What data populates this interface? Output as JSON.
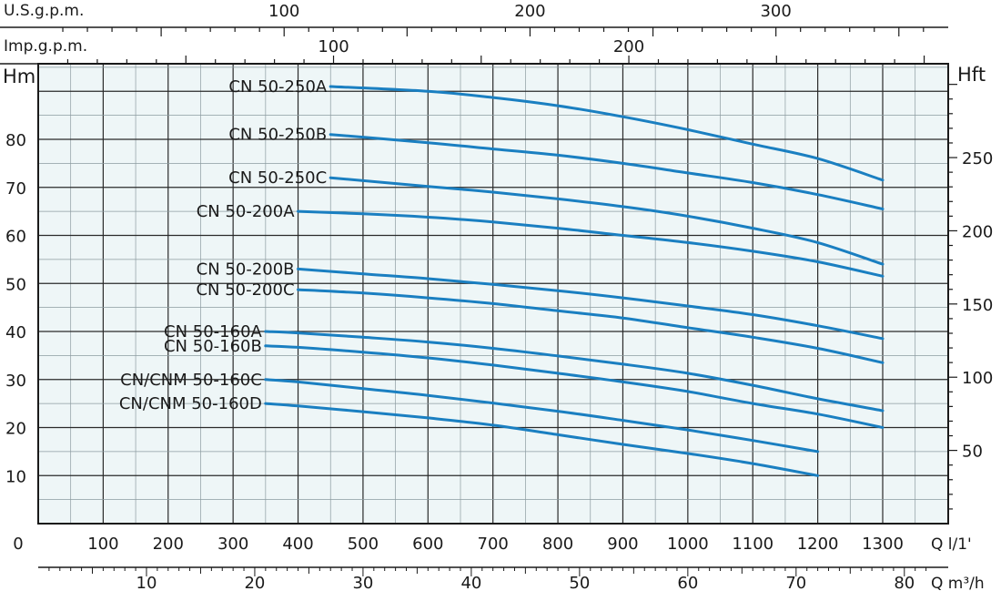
{
  "chart_data": {
    "type": "line",
    "left_axis_title": "Hm",
    "right_axis_title": "Hft",
    "top_axis_1_label": "U.S.g.p.m.",
    "top_axis_2_label": "Imp.g.p.m.",
    "bottom_axis_1_label": "Q  l/1'",
    "bottom_axis_2_label": "Q  m³/h",
    "bottom_origin_label": "0",
    "x_unit": "l/min",
    "xlim": [
      0,
      1370
    ],
    "ylim": [
      0,
      95
    ],
    "grid": true,
    "y_ticks": [
      "10",
      "20",
      "30",
      "40",
      "50",
      "60",
      "70",
      "80"
    ],
    "y_tick_values": [
      10,
      20,
      30,
      40,
      50,
      60,
      70,
      80
    ],
    "x_ticks_lmin": [
      "100",
      "200",
      "300",
      "400",
      "500",
      "600",
      "700",
      "800",
      "900",
      "1000",
      "1100",
      "1200",
      "1300"
    ],
    "x_ticks_lmin_values": [
      100,
      200,
      300,
      400,
      500,
      600,
      700,
      800,
      900,
      1000,
      1100,
      1200,
      1300
    ],
    "x_ticks_m3h": [
      "10",
      "20",
      "30",
      "40",
      "50",
      "60",
      "70",
      "80"
    ],
    "x_ticks_m3h_values": [
      10,
      20,
      30,
      40,
      50,
      60,
      70,
      80
    ],
    "x_ticks_usgpm": [
      "100",
      "200",
      "300"
    ],
    "x_ticks_usgpm_values": [
      100,
      200,
      300
    ],
    "x_ticks_impgpm": [
      "100",
      "200"
    ],
    "x_ticks_impgpm_values": [
      100,
      200
    ],
    "y_ticks_ft": [
      "50",
      "100",
      "150",
      "200",
      "250"
    ],
    "y_ticks_ft_values": [
      50,
      100,
      150,
      200,
      250
    ],
    "series_color": "#1a7fc1",
    "series": [
      {
        "name": "CN 50-250A",
        "x": [
          450,
          600,
          700,
          800,
          900,
          1000,
          1100,
          1200,
          1300
        ],
        "y": [
          91,
          90,
          88.7,
          87,
          84.7,
          82,
          79,
          76,
          71.5
        ]
      },
      {
        "name": "CN 50-250B",
        "x": [
          450,
          600,
          700,
          800,
          900,
          1000,
          1100,
          1200,
          1300
        ],
        "y": [
          81,
          79.3,
          78,
          76.7,
          75,
          73,
          71,
          68.5,
          65.5
        ]
      },
      {
        "name": "CN 50-250C",
        "x": [
          450,
          600,
          700,
          800,
          900,
          1000,
          1100,
          1200,
          1300
        ],
        "y": [
          72,
          70.2,
          69,
          67.6,
          66,
          64,
          61.5,
          58.5,
          54
        ]
      },
      {
        "name": "CN 50-200A",
        "x": [
          400,
          500,
          600,
          700,
          800,
          900,
          1000,
          1100,
          1200,
          1300
        ],
        "y": [
          65,
          64.5,
          63.8,
          62.8,
          61.5,
          60,
          58.5,
          56.7,
          54.5,
          51.5
        ]
      },
      {
        "name": "CN 50-200B",
        "x": [
          400,
          500,
          600,
          700,
          800,
          900,
          1000,
          1100,
          1200,
          1300
        ],
        "y": [
          53,
          52,
          51,
          49.8,
          48.5,
          47,
          45.3,
          43.5,
          41.2,
          38.5
        ]
      },
      {
        "name": "CN 50-200C",
        "x": [
          400,
          500,
          600,
          700,
          800,
          900,
          1000,
          1100,
          1200,
          1300
        ],
        "y": [
          48.7,
          48,
          47,
          45.8,
          44.3,
          42.8,
          40.8,
          38.8,
          36.5,
          33.5
        ]
      },
      {
        "name": "CN 50-160A",
        "x": [
          350,
          400,
          500,
          600,
          700,
          800,
          900,
          1000,
          1100,
          1200,
          1300
        ],
        "y": [
          40,
          39.7,
          38.8,
          37.8,
          36.5,
          34.9,
          33.2,
          31.3,
          28.8,
          26,
          23.5
        ]
      },
      {
        "name": "CN 50-160B",
        "x": [
          350,
          400,
          500,
          600,
          700,
          800,
          900,
          1000,
          1100,
          1200,
          1300
        ],
        "y": [
          37,
          36.7,
          35.7,
          34.5,
          33,
          31.3,
          29.5,
          27.5,
          25,
          22.8,
          20
        ]
      },
      {
        "name": "CN/CNM 50-160C",
        "x": [
          350,
          400,
          500,
          600,
          700,
          800,
          900,
          1000,
          1100,
          1200
        ],
        "y": [
          30,
          29.5,
          28.1,
          26.7,
          25.1,
          23.4,
          21.5,
          19.5,
          17.3,
          15
        ]
      },
      {
        "name": "CN/CNM 50-160D",
        "x": [
          350,
          400,
          500,
          600,
          700,
          800,
          900,
          1000,
          1100,
          1200
        ],
        "y": [
          25,
          24.5,
          23.3,
          22,
          20.5,
          18.5,
          16.5,
          14.6,
          12.5,
          10
        ]
      }
    ]
  }
}
